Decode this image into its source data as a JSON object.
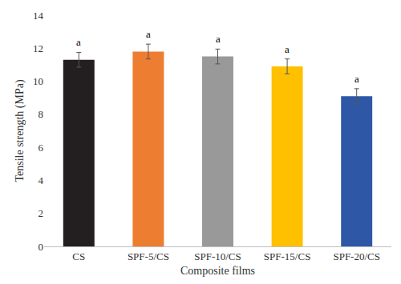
{
  "chart_data": {
    "type": "bar",
    "categories": [
      "CS",
      "SPF-5/CS",
      "SPF-10/CS",
      "SPF-15/CS",
      "SPF-20/CS"
    ],
    "values": [
      11.3,
      11.8,
      11.5,
      10.9,
      9.1
    ],
    "errors": [
      0.45,
      0.45,
      0.45,
      0.45,
      0.45
    ],
    "colors": [
      "#231f20",
      "#ed7d31",
      "#999999",
      "#ffc000",
      "#2e58a6"
    ],
    "annotations": [
      {
        "category": "CS",
        "text": "a"
      },
      {
        "category": "SPF-5/CS",
        "text": "a"
      },
      {
        "category": "SPF-10/CS",
        "text": "a"
      },
      {
        "category": "SPF-15/CS",
        "text": "a"
      },
      {
        "category": "SPF-20/CS",
        "text": "a"
      }
    ],
    "x_label": "Composite films",
    "y_label": "Tensile strength (MPa)",
    "ylim": [
      0,
      14
    ],
    "yticks": [
      0,
      2,
      4,
      6,
      8,
      10,
      12,
      14
    ],
    "grid": false
  }
}
